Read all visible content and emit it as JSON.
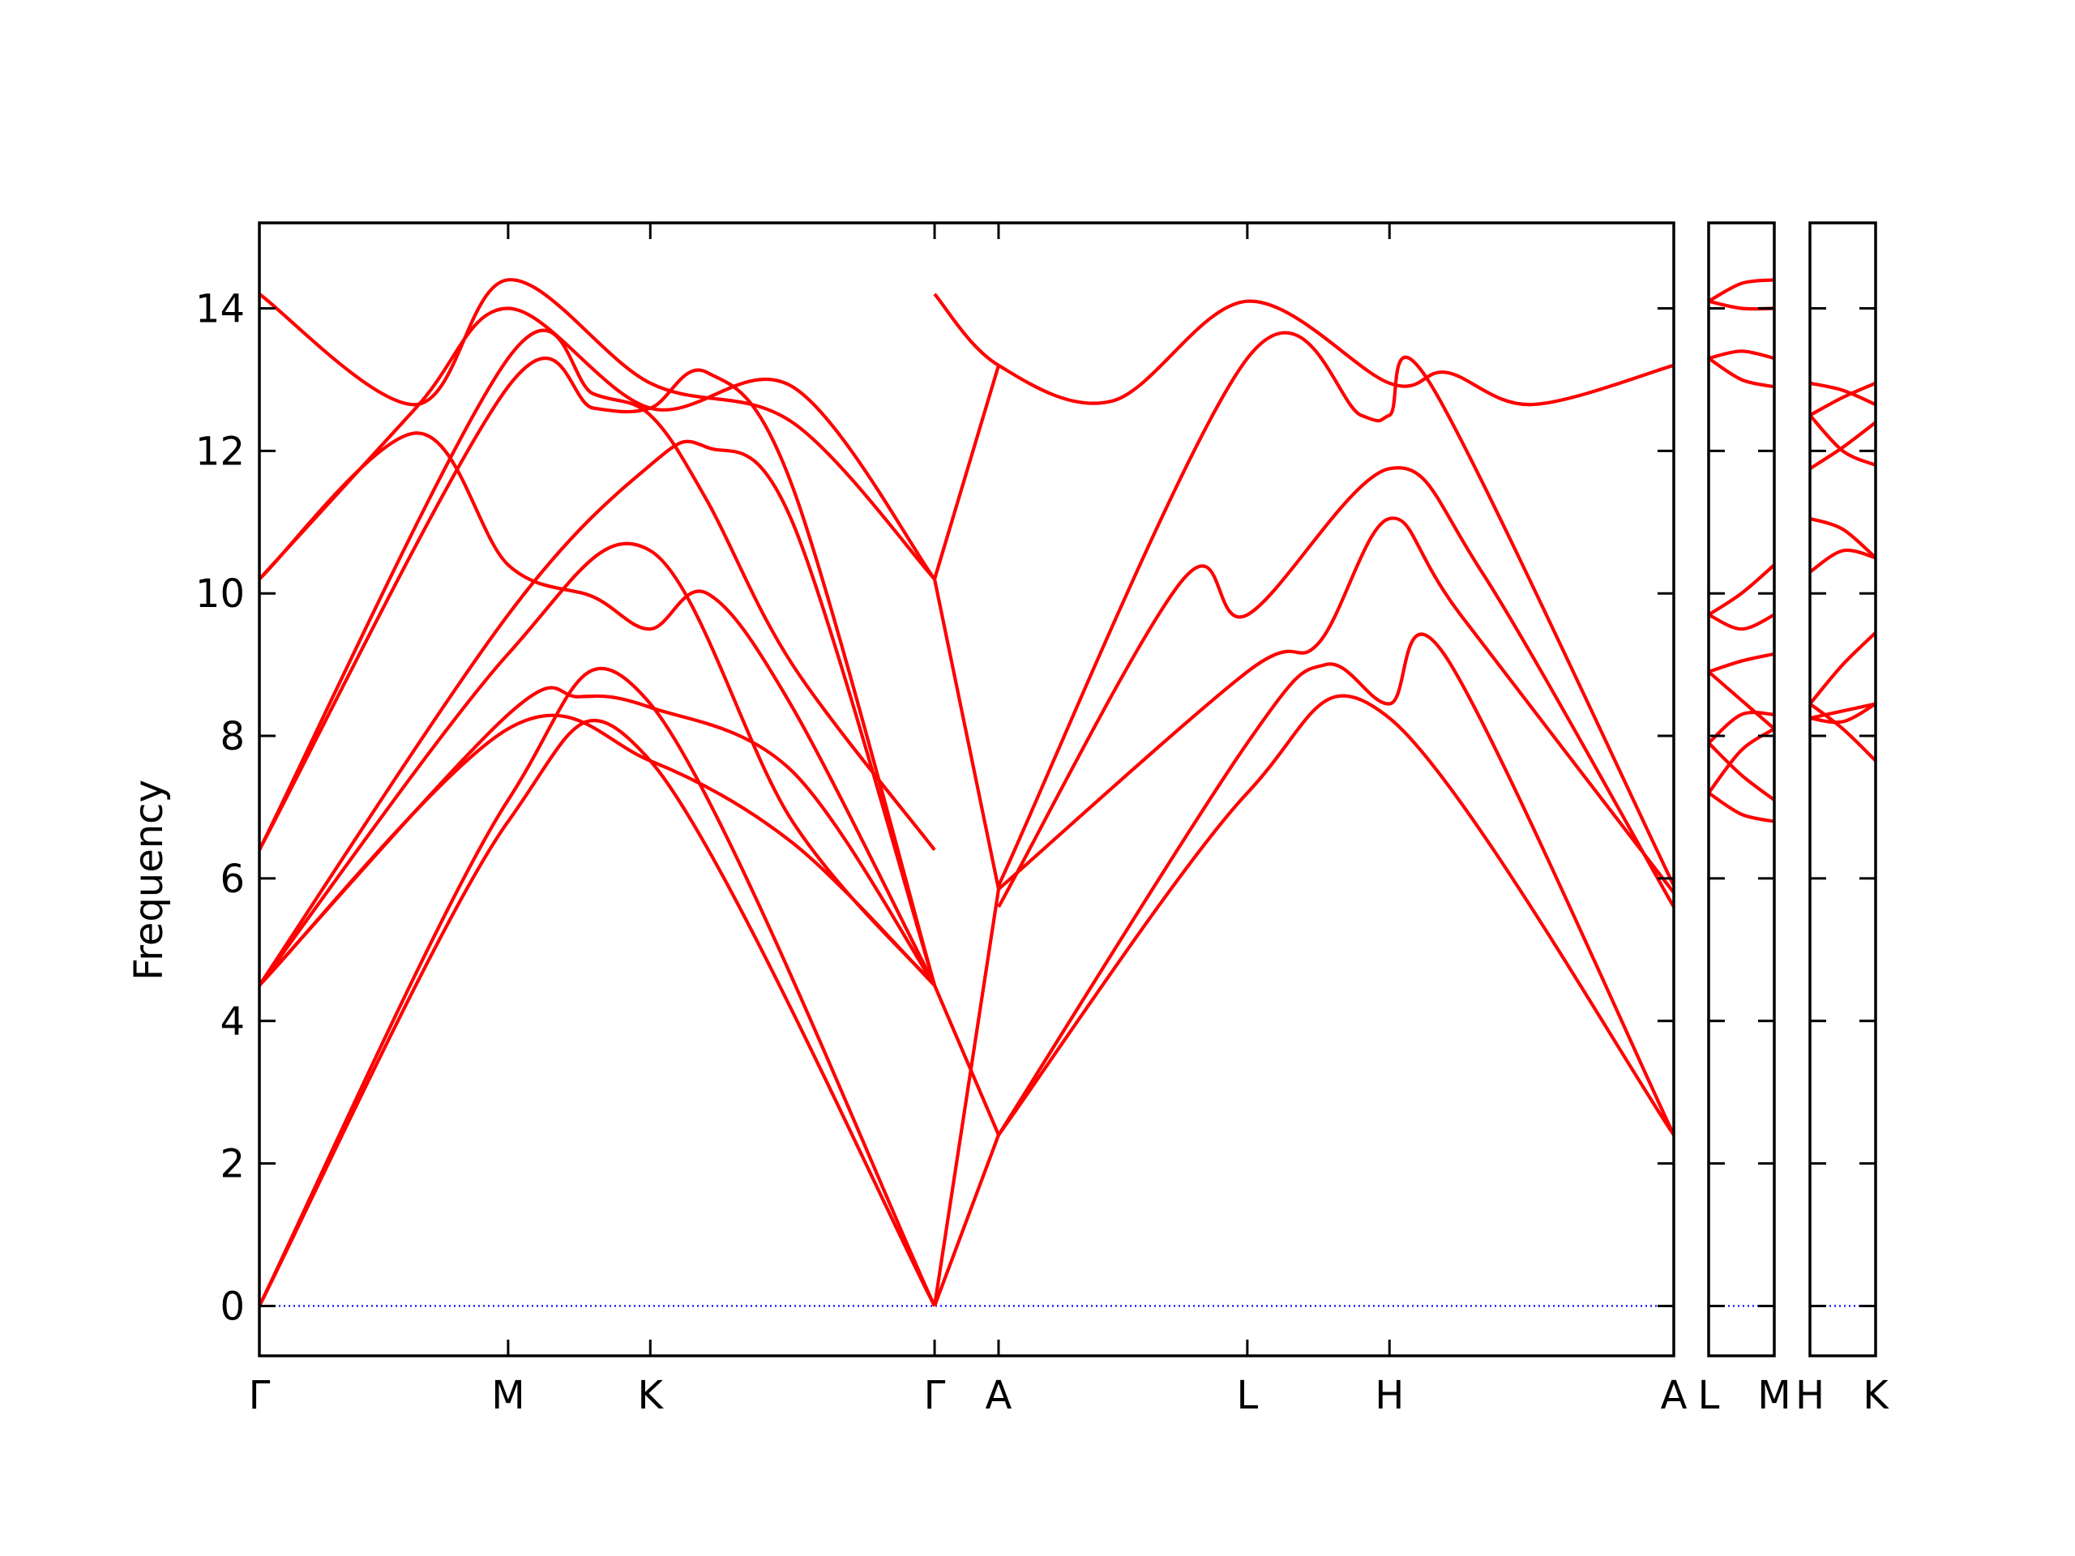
{
  "chart_data": {
    "type": "line",
    "title": "",
    "ylabel": "Frequency",
    "xlabel": "",
    "ylim": [
      -0.7,
      15.2
    ],
    "yticks": [
      0,
      2,
      4,
      6,
      8,
      10,
      12,
      14
    ],
    "grid": false,
    "legend": "none",
    "line_color": "#ff0000",
    "zero_line_color": "#0000ff",
    "panels": [
      {
        "labels": [
          "Γ",
          "M",
          "K",
          "Γ",
          "A",
          "L",
          "H",
          "A"
        ],
        "tick_x": [
          0,
          0.35,
          0.55,
          0.95,
          1.04,
          1.39,
          1.59,
          1.99
        ],
        "xmax": 1.99,
        "series": [
          {
            "x": [
              0,
              0.22,
              0.35,
              0.55,
              0.75,
              0.95
            ],
            "values": [
              14.2,
              12.65,
              14.4,
              12.95,
              12.4,
              10.2
            ]
          },
          {
            "x": [
              0,
              0.22,
              0.35,
              0.55,
              0.75,
              0.95
            ],
            "values": [
              10.2,
              12.6,
              14.0,
              12.6,
              12.9,
              10.2
            ]
          },
          {
            "x": [
              0,
              0.22,
              0.35,
              0.47,
              0.55,
              0.63,
              0.75,
              0.95
            ],
            "values": [
              10.2,
              12.25,
              10.4,
              9.95,
              9.5,
              10.0,
              8.4,
              4.5
            ]
          },
          {
            "x": [
              0,
              0.35,
              0.47,
              0.55,
              0.63,
              0.75,
              0.95
            ],
            "values": [
              6.4,
              13.3,
              12.8,
              12.5,
              11.3,
              9.0,
              6.4
            ]
          },
          {
            "x": [
              0,
              0.35,
              0.47,
              0.55,
              0.63,
              0.75,
              0.95
            ],
            "values": [
              6.4,
              12.9,
              12.6,
              12.6,
              13.1,
              11.5,
              4.5
            ]
          },
          {
            "x": [
              0,
              0.35,
              0.55,
              0.63,
              0.75,
              0.95
            ],
            "values": [
              4.5,
              9.7,
              11.8,
              12.05,
              11.0,
              4.5
            ]
          },
          {
            "x": [
              0,
              0.35,
              0.55,
              0.75,
              0.95
            ],
            "values": [
              4.5,
              9.15,
              10.6,
              6.8,
              4.5
            ]
          },
          {
            "x": [
              0,
              0.35,
              0.45,
              0.55,
              0.75,
              0.95
            ],
            "values": [
              4.5,
              8.3,
              8.55,
              8.4,
              7.5,
              4.5
            ]
          },
          {
            "x": [
              0,
              0.35,
              0.55,
              0.75,
              0.95
            ],
            "values": [
              4.5,
              8.1,
              7.65,
              6.5,
              4.5
            ]
          },
          {
            "x": [
              0,
              0.35,
              0.55,
              0.95
            ],
            "values": [
              0,
              7.1,
              8.45,
              0
            ]
          },
          {
            "x": [
              0,
              0.35,
              0.55,
              0.95
            ],
            "values": [
              0,
              6.8,
              7.65,
              0
            ]
          },
          {
            "x": [
              0.95,
              1.04,
              1.2,
              1.39,
              1.59,
              1.67,
              1.79,
              1.99
            ],
            "values": [
              14.2,
              13.2,
              12.7,
              14.1,
              12.95,
              13.1,
              12.65,
              13.2
            ]
          },
          {
            "x": [
              0.95,
              1.04
            ],
            "values": [
              10.2,
              13.2
            ]
          },
          {
            "x": [
              0.95,
              1.04
            ],
            "values": [
              10.2,
              5.85
            ]
          },
          {
            "x": [
              0.95,
              1.04
            ],
            "values": [
              4.5,
              2.4
            ]
          },
          {
            "x": [
              0.95,
              1.04
            ],
            "values": [
              0,
              5.85
            ]
          },
          {
            "x": [
              0.95,
              1.04
            ],
            "values": [
              0,
              2.4
            ]
          },
          {
            "x": [
              1.04,
              1.39,
              1.55,
              1.59,
              1.65,
              1.99
            ],
            "values": [
              5.9,
              13.3,
              12.5,
              12.5,
              12.9,
              5.9
            ]
          },
          {
            "x": [
              1.04,
              1.3,
              1.39,
              1.59,
              1.72,
              1.99
            ],
            "values": [
              5.6,
              10.2,
              9.7,
              11.75,
              10.3,
              5.6
            ]
          },
          {
            "x": [
              1.04,
              1.39,
              1.49,
              1.59,
              1.69,
              1.99
            ],
            "values": [
              5.85,
              8.9,
              9.3,
              11.05,
              9.7,
              5.8
            ]
          },
          {
            "x": [
              1.04,
              1.39,
              1.5,
              1.59,
              1.67,
              1.99
            ],
            "values": [
              2.4,
              7.9,
              9.0,
              8.45,
              9.1,
              2.4
            ]
          },
          {
            "x": [
              1.04,
              1.39,
              1.59,
              1.99
            ],
            "values": [
              2.4,
              7.2,
              8.25,
              2.4
            ]
          }
        ]
      },
      {
        "labels": [
          "L",
          "M"
        ],
        "tick_x": [
          0,
          1
        ],
        "xmax": 1,
        "series": [
          {
            "x": [
              0,
              0.5,
              1
            ],
            "values": [
              14.1,
              14.35,
              14.4
            ]
          },
          {
            "x": [
              0,
              0.5,
              1
            ],
            "values": [
              14.1,
              14.0,
              14.0
            ]
          },
          {
            "x": [
              0,
              0.5,
              1
            ],
            "values": [
              13.3,
              13.4,
              13.3
            ]
          },
          {
            "x": [
              0,
              0.5,
              1
            ],
            "values": [
              13.3,
              13.0,
              12.9
            ]
          },
          {
            "x": [
              0,
              0.5,
              1
            ],
            "values": [
              9.7,
              10.0,
              10.4
            ]
          },
          {
            "x": [
              0,
              0.5,
              1
            ],
            "values": [
              9.7,
              9.5,
              9.7
            ]
          },
          {
            "x": [
              0,
              0.5,
              1
            ],
            "values": [
              8.9,
              9.05,
              9.15
            ]
          },
          {
            "x": [
              0,
              0.5,
              1
            ],
            "values": [
              8.9,
              8.5,
              8.1
            ]
          },
          {
            "x": [
              0,
              0.5,
              1
            ],
            "values": [
              7.9,
              8.3,
              8.3
            ]
          },
          {
            "x": [
              0,
              0.5,
              1
            ],
            "values": [
              7.9,
              7.45,
              7.1
            ]
          },
          {
            "x": [
              0,
              0.5,
              1
            ],
            "values": [
              7.2,
              7.8,
              8.1
            ]
          },
          {
            "x": [
              0,
              0.5,
              1
            ],
            "values": [
              7.2,
              6.9,
              6.8
            ]
          }
        ]
      },
      {
        "labels": [
          "H",
          "K"
        ],
        "tick_x": [
          0,
          1
        ],
        "xmax": 1,
        "series": [
          {
            "x": [
              0,
              0.5,
              1
            ],
            "values": [
              12.95,
              12.85,
              12.65
            ]
          },
          {
            "x": [
              0,
              0.5,
              1
            ],
            "values": [
              12.5,
              12.75,
              12.95
            ]
          },
          {
            "x": [
              0,
              0.5,
              1
            ],
            "values": [
              12.5,
              12.0,
              11.8
            ]
          },
          {
            "x": [
              0,
              0.5,
              1
            ],
            "values": [
              11.75,
              12.05,
              12.4
            ]
          },
          {
            "x": [
              0,
              0.5,
              1
            ],
            "values": [
              11.05,
              10.9,
              10.5
            ]
          },
          {
            "x": [
              0,
              0.5,
              1
            ],
            "values": [
              10.3,
              10.6,
              10.5
            ]
          },
          {
            "x": [
              0,
              0.5,
              1
            ],
            "values": [
              8.45,
              9.0,
              9.45
            ]
          },
          {
            "x": [
              0,
              0.5,
              1
            ],
            "values": [
              8.45,
              8.1,
              7.65
            ]
          },
          {
            "x": [
              0,
              0.5,
              1
            ],
            "values": [
              8.25,
              8.35,
              8.45
            ]
          },
          {
            "x": [
              0,
              0.5,
              1
            ],
            "values": [
              8.25,
              8.2,
              8.45
            ]
          }
        ]
      }
    ]
  }
}
